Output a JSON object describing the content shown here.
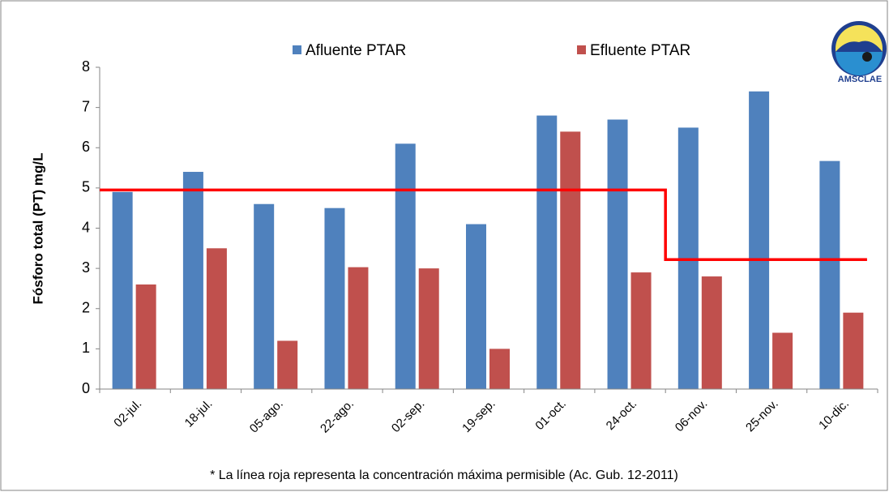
{
  "chart_data": {
    "type": "bar",
    "y_axis_label": "Fósforo total (PT) mg/L",
    "categories": [
      "02-jul.",
      "18-jul.",
      "05-ago.",
      "22-ago.",
      "02-sep.",
      "19-sep.",
      "01-oct.",
      "24-oct.",
      "06-nov.",
      "25-nov.",
      "10-dic."
    ],
    "series": [
      {
        "name": "Afluente PTAR",
        "color": "#4f81bd",
        "values": [
          4.9,
          5.4,
          4.6,
          4.5,
          6.1,
          4.1,
          6.8,
          6.7,
          6.5,
          7.4,
          5.67
        ]
      },
      {
        "name": "Efluente PTAR",
        "color": "#c0504d",
        "values": [
          2.6,
          3.5,
          1.2,
          3.03,
          3.0,
          1.0,
          6.4,
          2.9,
          2.8,
          1.4,
          1.9
        ]
      }
    ],
    "reference_line": {
      "color": "#ff0000",
      "values": [
        4.95,
        4.95,
        4.95,
        4.95,
        4.95,
        4.95,
        4.95,
        4.95,
        3.22,
        3.22,
        3.22
      ]
    },
    "ylim": [
      0,
      8
    ],
    "yticks": [
      0,
      1,
      2,
      3,
      4,
      5,
      6,
      7,
      8
    ],
    "note": "* La línea roja representa la concentración máxima permisible (Ac. Gub. 12-2011)",
    "logo_text": "AMSCLAE"
  }
}
